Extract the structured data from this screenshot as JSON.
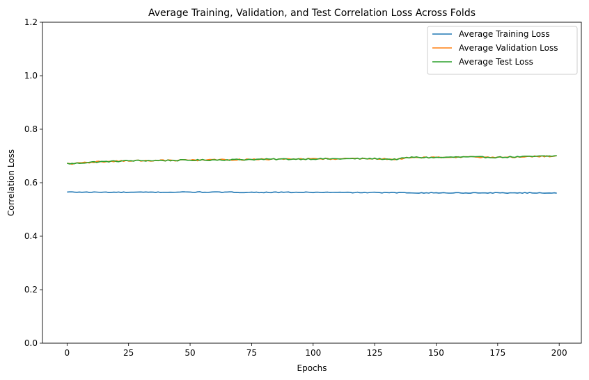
{
  "chart_data": {
    "type": "line",
    "title": "Average Training, Validation, and Test Correlation Loss Across Folds",
    "xlabel": "Epochs",
    "ylabel": "Correlation Loss",
    "xlim": [
      -10,
      209
    ],
    "ylim": [
      0,
      1.2
    ],
    "x_ticks": [
      0,
      25,
      50,
      75,
      100,
      125,
      150,
      175,
      200
    ],
    "y_ticks": [
      0.0,
      0.2,
      0.4,
      0.6,
      0.8,
      1.0,
      1.2
    ],
    "y_tick_labels": [
      "0.0",
      "0.2",
      "0.4",
      "0.6",
      "0.8",
      "1.0",
      "1.2"
    ],
    "grid": false,
    "legend_position": "top-right",
    "x": {
      "start": 0,
      "end": 199,
      "step": 1
    },
    "series": [
      {
        "name": "Average Training Loss",
        "color": "#1f77b4",
        "keypoints": [
          [
            0,
            0.565
          ],
          [
            25,
            0.564
          ],
          [
            50,
            0.565
          ],
          [
            75,
            0.564
          ],
          [
            100,
            0.564
          ],
          [
            125,
            0.563
          ],
          [
            150,
            0.562
          ],
          [
            175,
            0.562
          ],
          [
            199,
            0.562
          ]
        ],
        "noise": 0.0015
      },
      {
        "name": "Average Validation Loss",
        "color": "#ff7f0e",
        "keypoints": [
          [
            0,
            0.672
          ],
          [
            2,
            0.671
          ],
          [
            10,
            0.677
          ],
          [
            25,
            0.682
          ],
          [
            50,
            0.684
          ],
          [
            75,
            0.687
          ],
          [
            100,
            0.689
          ],
          [
            125,
            0.69
          ],
          [
            133,
            0.687
          ],
          [
            140,
            0.695
          ],
          [
            150,
            0.694
          ],
          [
            160,
            0.696
          ],
          [
            175,
            0.695
          ],
          [
            199,
            0.7
          ]
        ],
        "noise": 0.0025
      },
      {
        "name": "Average Test Loss",
        "color": "#2ca02c",
        "keypoints": [
          [
            0,
            0.672
          ],
          [
            2,
            0.671
          ],
          [
            10,
            0.677
          ],
          [
            25,
            0.682
          ],
          [
            50,
            0.684
          ],
          [
            75,
            0.687
          ],
          [
            100,
            0.689
          ],
          [
            125,
            0.69
          ],
          [
            133,
            0.687
          ],
          [
            140,
            0.695
          ],
          [
            150,
            0.694
          ],
          [
            160,
            0.696
          ],
          [
            175,
            0.695
          ],
          [
            199,
            0.7
          ]
        ],
        "noise": 0.0025
      }
    ]
  }
}
